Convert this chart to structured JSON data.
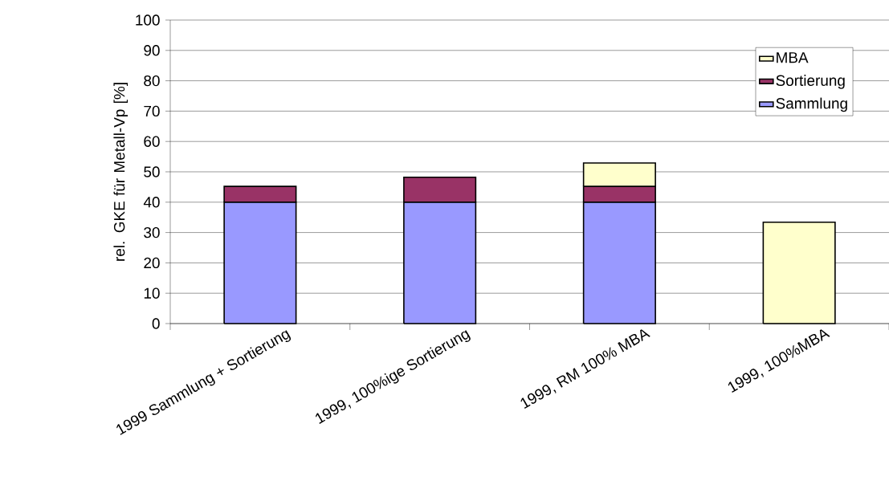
{
  "chart_data": {
    "type": "bar",
    "stacked": true,
    "ylabel": "rel. GKE für Metall-Vp [%]",
    "categories": [
      "1999 Sammlung + Sortierung",
      "1999, 100%ige Sortierung",
      "1999, RM 100% MBA",
      "1999, 100%MBA"
    ],
    "series": [
      {
        "name": "Sammlung",
        "color": "#9999ff",
        "values": [
          40,
          40,
          40,
          null
        ]
      },
      {
        "name": "Sortierung",
        "color": "#993366",
        "values": [
          5.2,
          8.2,
          5.2,
          null
        ]
      },
      {
        "name": "MBA",
        "color": "#ffffcc",
        "values": [
          null,
          null,
          7.7,
          33.4
        ]
      }
    ],
    "ylim": [
      0,
      100
    ],
    "yticks": [
      0,
      10,
      20,
      30,
      40,
      50,
      60,
      70,
      80,
      90,
      100
    ],
    "grid": "y",
    "legend": "top right"
  }
}
